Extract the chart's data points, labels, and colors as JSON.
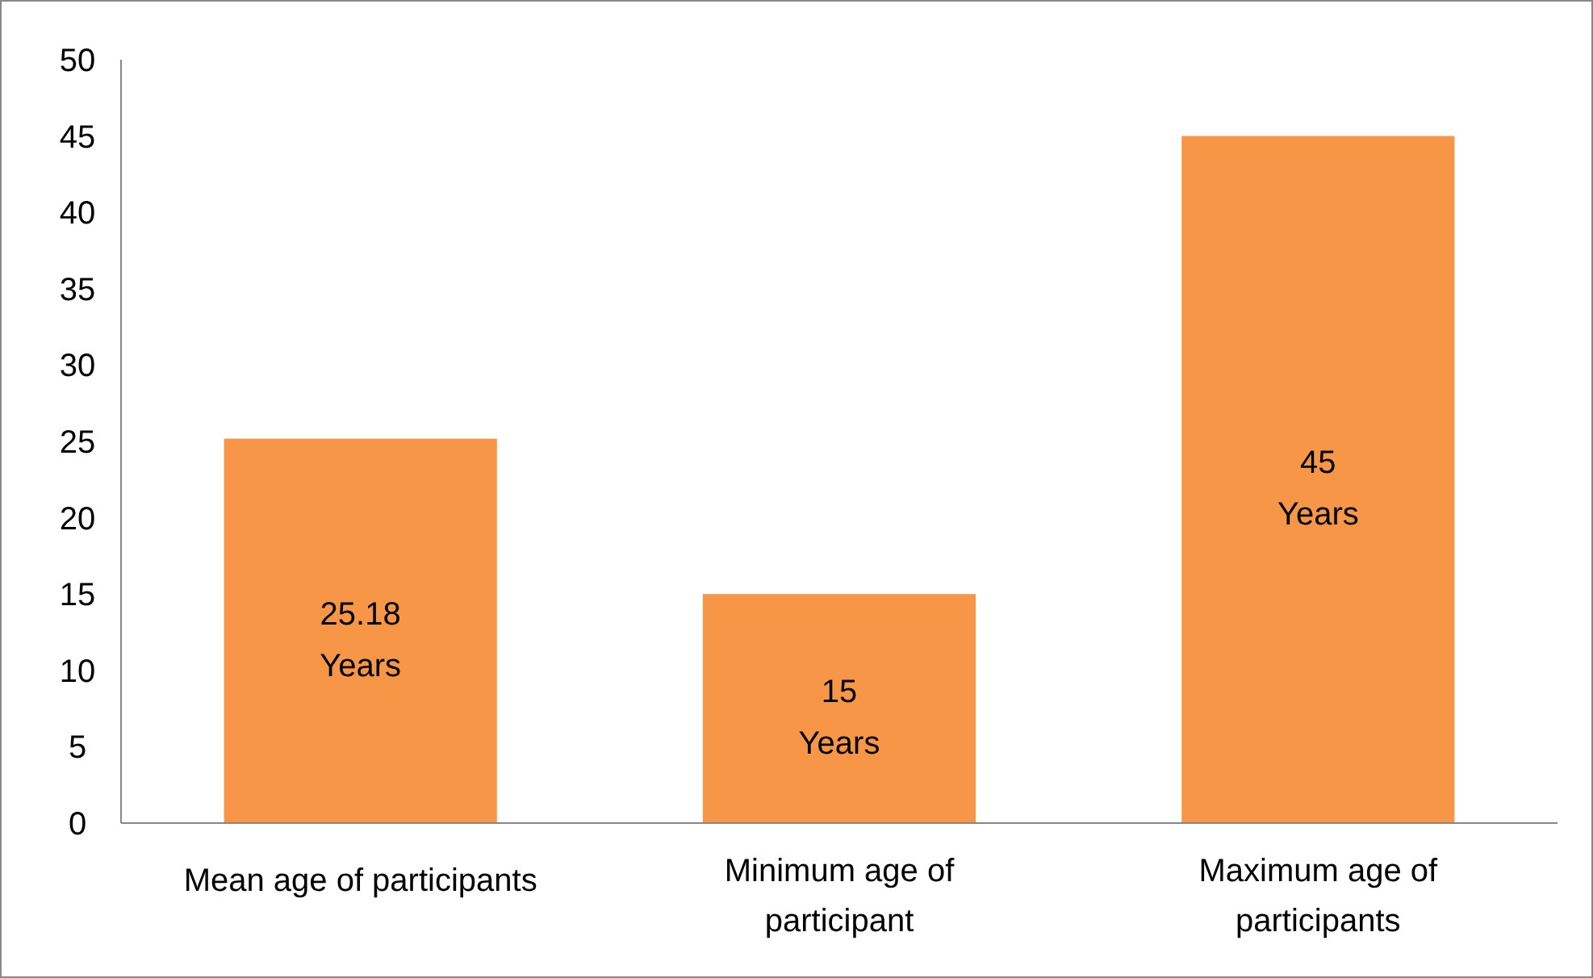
{
  "chart_data": {
    "type": "bar",
    "categories": [
      "Mean age of participants",
      "Minimum age of participant",
      "Maximum age of participants"
    ],
    "values": [
      25.18,
      15,
      45
    ],
    "color": "#f79646",
    "value_labels": [
      "25.18 Years",
      "15 Years",
      "45 Years"
    ],
    "ylim": [
      0,
      50
    ],
    "yticks": [
      0,
      5,
      10,
      15,
      20,
      25,
      30,
      35,
      40,
      45,
      50
    ],
    "grid": false
  }
}
